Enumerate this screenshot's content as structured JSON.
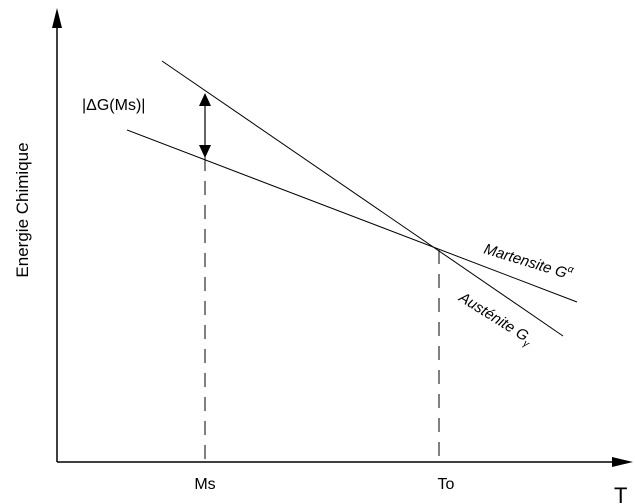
{
  "y_axis_label": "Energie Chimique",
  "x_axis_label": "T",
  "x_ticks": {
    "ms": "Ms",
    "to": "To"
  },
  "delta_label": "|ΔG(Ms)|",
  "curves": {
    "martensite": {
      "label": "Martensite G",
      "superscript": "α"
    },
    "austenite": {
      "label": "Austénite G",
      "superscript": "γ"
    }
  },
  "colors": {
    "line": "#000000",
    "background": "#ffffff"
  }
}
